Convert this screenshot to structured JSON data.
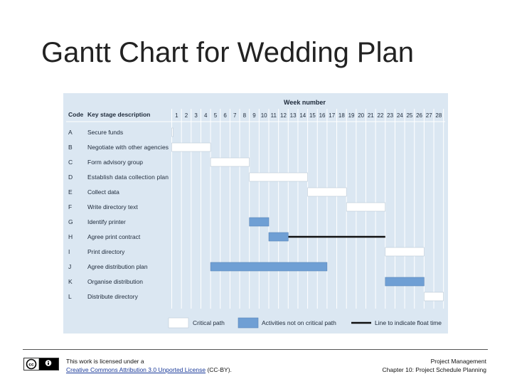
{
  "slide": {
    "title": "Gantt Chart for Wedding Plan"
  },
  "footer": {
    "license_line1": "This work is licensed under a",
    "license_link": "Creative Commons Attribution 3.0 Unported License",
    "license_suffix": " (CC-BY).",
    "course_line1": "Project Management",
    "course_line2": "Chapter 10: Project Schedule Planning",
    "badge_icon": "cc-by-license-icon"
  },
  "chart_data": {
    "type": "gantt",
    "header_top": "Week number",
    "col_code": "Code",
    "col_stage": "Key stage description",
    "weeks": [
      1,
      2,
      3,
      4,
      5,
      6,
      7,
      8,
      9,
      10,
      11,
      12,
      13,
      14,
      15,
      16,
      17,
      18,
      19,
      20,
      21,
      22,
      23,
      24,
      25,
      26,
      27,
      28
    ],
    "tasks": [
      {
        "code": "A",
        "name": "Secure funds",
        "start_week": 1,
        "end_week": 1,
        "kind": "critical"
      },
      {
        "code": "B",
        "name": "Negotiate with other agencies",
        "start_week": 1,
        "end_week": 4,
        "kind": "critical"
      },
      {
        "code": "C",
        "name": "Form advisory group",
        "start_week": 5,
        "end_week": 8,
        "kind": "critical"
      },
      {
        "code": "D",
        "name": "Establish data collection plan",
        "start_week": 9,
        "end_week": 14,
        "kind": "critical"
      },
      {
        "code": "E",
        "name": "Collect data",
        "start_week": 15,
        "end_week": 18,
        "kind": "critical"
      },
      {
        "code": "F",
        "name": "Write directory text",
        "start_week": 19,
        "end_week": 22,
        "kind": "critical"
      },
      {
        "code": "G",
        "name": "Identify printer",
        "start_week": 9,
        "end_week": 10,
        "kind": "non-critical"
      },
      {
        "code": "H",
        "name": "Agree print contract",
        "start_week": 11,
        "end_week": 12,
        "kind": "non-critical",
        "float_end_week": 22
      },
      {
        "code": "I",
        "name": "Print directory",
        "start_week": 23,
        "end_week": 26,
        "kind": "critical"
      },
      {
        "code": "J",
        "name": "Agree distribution plan",
        "start_week": 5,
        "end_week": 16,
        "kind": "non-critical"
      },
      {
        "code": "K",
        "name": "Organise distribution",
        "start_week": 23,
        "end_week": 26,
        "kind": "non-critical"
      },
      {
        "code": "L",
        "name": "Distribute directory",
        "start_week": 27,
        "end_week": 28,
        "kind": "critical"
      }
    ],
    "legend": [
      {
        "kind": "critical",
        "label": "Critical path"
      },
      {
        "kind": "non-critical",
        "label": "Activities not on critical path"
      },
      {
        "kind": "float",
        "label": "Line to indicate float time"
      }
    ],
    "colors": {
      "panel_bg": "#dbe7f2",
      "critical_fill": "#ffffff",
      "noncritical_fill": "#6f9fd4",
      "float_line": "#111111",
      "gridline": "#ffffff",
      "text": "#1e2a3a"
    }
  }
}
